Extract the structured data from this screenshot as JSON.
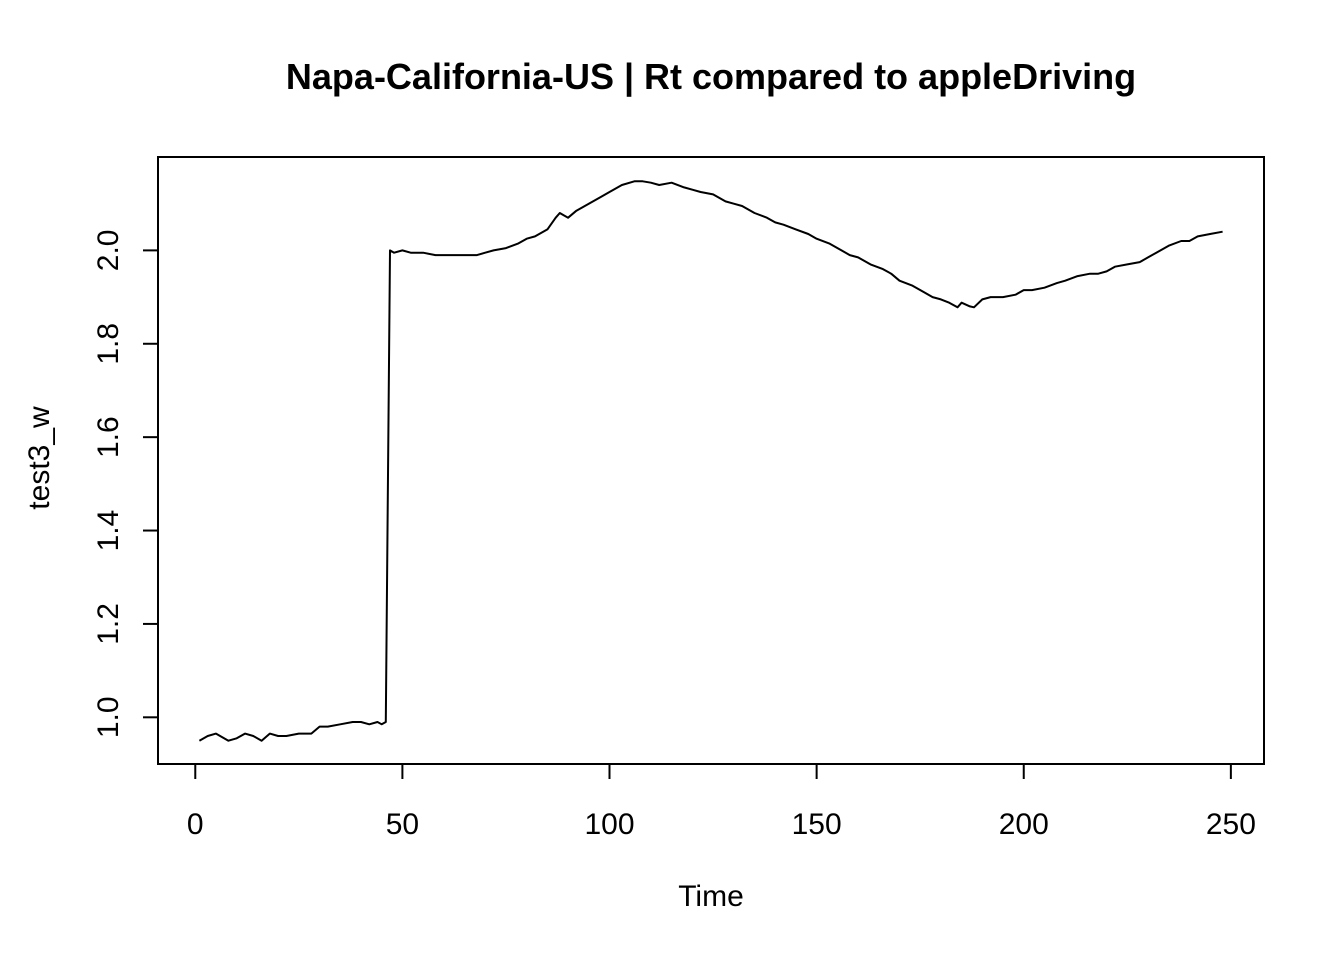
{
  "chart_data": {
    "type": "line",
    "title": "Napa-California-US | Rt compared to appleDriving",
    "xlabel": "Time",
    "ylabel": "test3_w",
    "xlim": [
      -9,
      258
    ],
    "ylim": [
      0.9,
      2.2
    ],
    "x_ticks": [
      0,
      50,
      100,
      150,
      200,
      250
    ],
    "y_ticks": [
      1.0,
      1.2,
      1.4,
      1.6,
      1.8,
      2.0
    ],
    "grid": false,
    "legend": "none",
    "line_color": "#000000",
    "series": [
      {
        "x": [
          1,
          3,
          5,
          8,
          10,
          12,
          14,
          16,
          18,
          20,
          22,
          25,
          28,
          30,
          32,
          35,
          38,
          40,
          42,
          44,
          45,
          46,
          47,
          48,
          50,
          52,
          55,
          58,
          60,
          62,
          65,
          68,
          70,
          72,
          75,
          78,
          80,
          82,
          85,
          87,
          88,
          89,
          90,
          92,
          95,
          98,
          100,
          103,
          106,
          108,
          110,
          112,
          115,
          118,
          120,
          122,
          125,
          128,
          130,
          132,
          135,
          138,
          140,
          142,
          145,
          148,
          150,
          153,
          156,
          158,
          160,
          163,
          166,
          168,
          170,
          173,
          176,
          178,
          180,
          182,
          184,
          185,
          187,
          188,
          190,
          192,
          195,
          198,
          200,
          202,
          205,
          208,
          210,
          213,
          216,
          218,
          220,
          222,
          225,
          228,
          230,
          232,
          235,
          238,
          240,
          242,
          245,
          248
        ],
        "y": [
          0.95,
          0.96,
          0.965,
          0.95,
          0.955,
          0.965,
          0.96,
          0.95,
          0.965,
          0.96,
          0.96,
          0.965,
          0.965,
          0.98,
          0.98,
          0.985,
          0.99,
          0.99,
          0.985,
          0.99,
          0.985,
          0.99,
          2.0,
          1.995,
          2.0,
          1.995,
          1.995,
          1.99,
          1.99,
          1.99,
          1.99,
          1.99,
          1.995,
          2.0,
          2.005,
          2.015,
          2.025,
          2.03,
          2.045,
          2.07,
          2.08,
          2.075,
          2.07,
          2.085,
          2.1,
          2.115,
          2.125,
          2.14,
          2.148,
          2.148,
          2.145,
          2.14,
          2.145,
          2.135,
          2.13,
          2.125,
          2.12,
          2.105,
          2.1,
          2.095,
          2.08,
          2.07,
          2.06,
          2.055,
          2.045,
          2.035,
          2.025,
          2.015,
          2.0,
          1.99,
          1.985,
          1.97,
          1.96,
          1.95,
          1.935,
          1.925,
          1.91,
          1.9,
          1.895,
          1.888,
          1.878,
          1.888,
          1.88,
          1.878,
          1.895,
          1.9,
          1.9,
          1.905,
          1.915,
          1.915,
          1.92,
          1.93,
          1.935,
          1.945,
          1.95,
          1.95,
          1.955,
          1.965,
          1.97,
          1.975,
          1.985,
          1.995,
          2.01,
          2.02,
          2.02,
          2.03,
          2.035,
          2.04
        ]
      }
    ]
  }
}
